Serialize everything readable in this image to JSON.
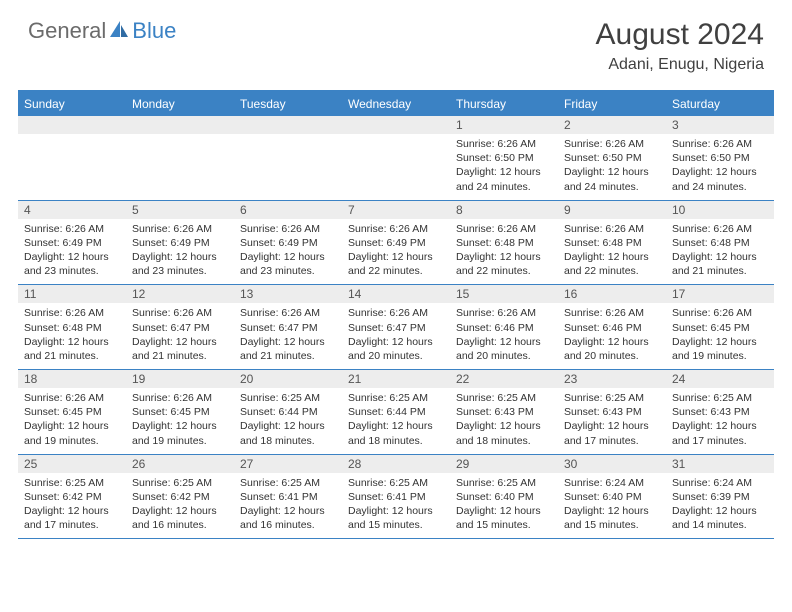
{
  "logo": {
    "word1": "General",
    "word2": "Blue"
  },
  "title": "August 2024",
  "location": "Adani, Enugu, Nigeria",
  "colors": {
    "accent": "#3b82c4",
    "header_bg": "#3b82c4",
    "date_bg": "#ededed",
    "text": "#333333"
  },
  "day_names": [
    "Sunday",
    "Monday",
    "Tuesday",
    "Wednesday",
    "Thursday",
    "Friday",
    "Saturday"
  ],
  "weeks": [
    [
      null,
      null,
      null,
      null,
      {
        "d": "1",
        "sr": "Sunrise: 6:26 AM",
        "ss": "Sunset: 6:50 PM",
        "dl": "Daylight: 12 hours and 24 minutes."
      },
      {
        "d": "2",
        "sr": "Sunrise: 6:26 AM",
        "ss": "Sunset: 6:50 PM",
        "dl": "Daylight: 12 hours and 24 minutes."
      },
      {
        "d": "3",
        "sr": "Sunrise: 6:26 AM",
        "ss": "Sunset: 6:50 PM",
        "dl": "Daylight: 12 hours and 24 minutes."
      }
    ],
    [
      {
        "d": "4",
        "sr": "Sunrise: 6:26 AM",
        "ss": "Sunset: 6:49 PM",
        "dl": "Daylight: 12 hours and 23 minutes."
      },
      {
        "d": "5",
        "sr": "Sunrise: 6:26 AM",
        "ss": "Sunset: 6:49 PM",
        "dl": "Daylight: 12 hours and 23 minutes."
      },
      {
        "d": "6",
        "sr": "Sunrise: 6:26 AM",
        "ss": "Sunset: 6:49 PM",
        "dl": "Daylight: 12 hours and 23 minutes."
      },
      {
        "d": "7",
        "sr": "Sunrise: 6:26 AM",
        "ss": "Sunset: 6:49 PM",
        "dl": "Daylight: 12 hours and 22 minutes."
      },
      {
        "d": "8",
        "sr": "Sunrise: 6:26 AM",
        "ss": "Sunset: 6:48 PM",
        "dl": "Daylight: 12 hours and 22 minutes."
      },
      {
        "d": "9",
        "sr": "Sunrise: 6:26 AM",
        "ss": "Sunset: 6:48 PM",
        "dl": "Daylight: 12 hours and 22 minutes."
      },
      {
        "d": "10",
        "sr": "Sunrise: 6:26 AM",
        "ss": "Sunset: 6:48 PM",
        "dl": "Daylight: 12 hours and 21 minutes."
      }
    ],
    [
      {
        "d": "11",
        "sr": "Sunrise: 6:26 AM",
        "ss": "Sunset: 6:48 PM",
        "dl": "Daylight: 12 hours and 21 minutes."
      },
      {
        "d": "12",
        "sr": "Sunrise: 6:26 AM",
        "ss": "Sunset: 6:47 PM",
        "dl": "Daylight: 12 hours and 21 minutes."
      },
      {
        "d": "13",
        "sr": "Sunrise: 6:26 AM",
        "ss": "Sunset: 6:47 PM",
        "dl": "Daylight: 12 hours and 21 minutes."
      },
      {
        "d": "14",
        "sr": "Sunrise: 6:26 AM",
        "ss": "Sunset: 6:47 PM",
        "dl": "Daylight: 12 hours and 20 minutes."
      },
      {
        "d": "15",
        "sr": "Sunrise: 6:26 AM",
        "ss": "Sunset: 6:46 PM",
        "dl": "Daylight: 12 hours and 20 minutes."
      },
      {
        "d": "16",
        "sr": "Sunrise: 6:26 AM",
        "ss": "Sunset: 6:46 PM",
        "dl": "Daylight: 12 hours and 20 minutes."
      },
      {
        "d": "17",
        "sr": "Sunrise: 6:26 AM",
        "ss": "Sunset: 6:45 PM",
        "dl": "Daylight: 12 hours and 19 minutes."
      }
    ],
    [
      {
        "d": "18",
        "sr": "Sunrise: 6:26 AM",
        "ss": "Sunset: 6:45 PM",
        "dl": "Daylight: 12 hours and 19 minutes."
      },
      {
        "d": "19",
        "sr": "Sunrise: 6:26 AM",
        "ss": "Sunset: 6:45 PM",
        "dl": "Daylight: 12 hours and 19 minutes."
      },
      {
        "d": "20",
        "sr": "Sunrise: 6:25 AM",
        "ss": "Sunset: 6:44 PM",
        "dl": "Daylight: 12 hours and 18 minutes."
      },
      {
        "d": "21",
        "sr": "Sunrise: 6:25 AM",
        "ss": "Sunset: 6:44 PM",
        "dl": "Daylight: 12 hours and 18 minutes."
      },
      {
        "d": "22",
        "sr": "Sunrise: 6:25 AM",
        "ss": "Sunset: 6:43 PM",
        "dl": "Daylight: 12 hours and 18 minutes."
      },
      {
        "d": "23",
        "sr": "Sunrise: 6:25 AM",
        "ss": "Sunset: 6:43 PM",
        "dl": "Daylight: 12 hours and 17 minutes."
      },
      {
        "d": "24",
        "sr": "Sunrise: 6:25 AM",
        "ss": "Sunset: 6:43 PM",
        "dl": "Daylight: 12 hours and 17 minutes."
      }
    ],
    [
      {
        "d": "25",
        "sr": "Sunrise: 6:25 AM",
        "ss": "Sunset: 6:42 PM",
        "dl": "Daylight: 12 hours and 17 minutes."
      },
      {
        "d": "26",
        "sr": "Sunrise: 6:25 AM",
        "ss": "Sunset: 6:42 PM",
        "dl": "Daylight: 12 hours and 16 minutes."
      },
      {
        "d": "27",
        "sr": "Sunrise: 6:25 AM",
        "ss": "Sunset: 6:41 PM",
        "dl": "Daylight: 12 hours and 16 minutes."
      },
      {
        "d": "28",
        "sr": "Sunrise: 6:25 AM",
        "ss": "Sunset: 6:41 PM",
        "dl": "Daylight: 12 hours and 15 minutes."
      },
      {
        "d": "29",
        "sr": "Sunrise: 6:25 AM",
        "ss": "Sunset: 6:40 PM",
        "dl": "Daylight: 12 hours and 15 minutes."
      },
      {
        "d": "30",
        "sr": "Sunrise: 6:24 AM",
        "ss": "Sunset: 6:40 PM",
        "dl": "Daylight: 12 hours and 15 minutes."
      },
      {
        "d": "31",
        "sr": "Sunrise: 6:24 AM",
        "ss": "Sunset: 6:39 PM",
        "dl": "Daylight: 12 hours and 14 minutes."
      }
    ]
  ]
}
